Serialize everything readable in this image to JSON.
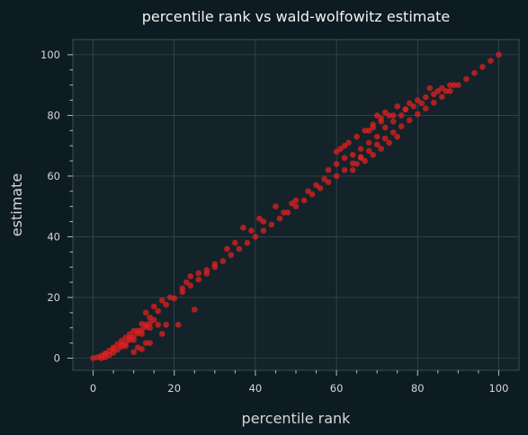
{
  "chart_data": {
    "type": "scatter",
    "title": "percentile rank vs wald-wolfowitz estimate",
    "xlabel": "percentile rank",
    "ylabel": "estimate",
    "xlim": [
      -5,
      105
    ],
    "ylim": [
      -4,
      105
    ],
    "xticks": [
      0,
      20,
      40,
      60,
      80,
      100
    ],
    "yticks": [
      0,
      20,
      40,
      60,
      80,
      100
    ],
    "grid": true,
    "point_color": "#e02020",
    "background": "#0d1b22",
    "plot_background": "#14232a",
    "series": [
      {
        "points": [
          [
            0,
            0
          ],
          [
            1,
            0.3
          ],
          [
            2,
            0.8
          ],
          [
            3,
            1.5
          ],
          [
            4,
            2.5
          ],
          [
            5,
            3.5
          ],
          [
            6,
            4.6
          ],
          [
            7,
            5.7
          ],
          [
            8,
            6.8
          ],
          [
            9,
            7.9
          ],
          [
            10,
            9
          ],
          [
            12,
            11.3
          ],
          [
            14,
            13.4
          ],
          [
            16,
            15.5
          ],
          [
            18,
            17.6
          ],
          [
            20,
            19.7
          ],
          [
            22,
            21.8
          ],
          [
            24,
            23.9
          ],
          [
            26,
            25.9
          ],
          [
            28,
            27.9
          ],
          [
            30,
            30
          ],
          [
            32,
            32
          ],
          [
            34,
            34
          ],
          [
            36,
            36
          ],
          [
            38,
            38
          ],
          [
            40,
            40
          ],
          [
            42,
            42
          ],
          [
            44,
            44
          ],
          [
            46,
            46
          ],
          [
            48,
            48
          ],
          [
            50,
            50
          ],
          [
            52,
            52
          ],
          [
            54,
            54
          ],
          [
            56,
            56
          ],
          [
            58,
            58
          ],
          [
            60,
            60
          ],
          [
            62,
            62
          ],
          [
            64,
            64.2
          ],
          [
            66,
            66.3
          ],
          [
            68,
            68.3
          ],
          [
            70,
            70.4
          ],
          [
            72,
            72.4
          ],
          [
            74,
            74.4
          ],
          [
            76,
            76.4
          ],
          [
            78,
            78.4
          ],
          [
            80,
            80.4
          ],
          [
            82,
            82.3
          ],
          [
            84,
            84.2
          ],
          [
            86,
            86.1
          ],
          [
            88,
            88
          ],
          [
            90,
            90
          ],
          [
            92,
            92
          ],
          [
            94,
            94
          ],
          [
            96,
            96
          ],
          [
            98,
            98
          ],
          [
            100,
            100
          ],
          [
            2,
            0
          ],
          [
            3,
            0.3
          ],
          [
            4,
            1
          ],
          [
            5,
            1.8
          ],
          [
            6,
            2.8
          ],
          [
            7,
            3.8
          ],
          [
            8,
            4.9
          ],
          [
            9,
            6
          ],
          [
            10,
            7
          ],
          [
            11,
            8.2
          ],
          [
            12,
            9.3
          ],
          [
            13,
            10.3
          ],
          [
            14,
            11.5
          ],
          [
            15,
            12.6
          ],
          [
            3,
            1.5
          ],
          [
            5,
            3
          ],
          [
            7,
            4.5
          ],
          [
            9,
            6.5
          ],
          [
            11,
            9
          ],
          [
            13,
            11
          ],
          [
            8,
            4
          ],
          [
            10,
            6
          ],
          [
            12,
            8
          ],
          [
            14,
            10
          ],
          [
            16,
            11
          ],
          [
            17,
            8
          ],
          [
            18,
            11
          ],
          [
            21,
            11
          ],
          [
            25,
            16
          ],
          [
            10,
            2
          ],
          [
            12,
            3
          ],
          [
            14,
            5
          ],
          [
            13,
            5
          ],
          [
            11,
            3.5
          ],
          [
            58,
            62
          ],
          [
            60,
            64
          ],
          [
            62,
            66
          ],
          [
            64,
            67
          ],
          [
            66,
            69
          ],
          [
            68,
            71
          ],
          [
            70,
            73
          ],
          [
            72,
            76
          ],
          [
            74,
            78
          ],
          [
            60,
            68
          ],
          [
            61,
            69
          ],
          [
            62,
            70
          ],
          [
            63,
            71
          ],
          [
            65,
            73
          ],
          [
            67,
            75
          ],
          [
            69,
            77
          ],
          [
            71,
            79
          ],
          [
            70,
            80
          ],
          [
            72,
            81
          ],
          [
            75,
            83
          ],
          [
            78,
            84
          ],
          [
            80,
            85
          ],
          [
            83,
            89
          ],
          [
            86,
            89
          ],
          [
            88,
            90
          ],
          [
            76,
            80
          ],
          [
            77,
            82
          ],
          [
            79,
            83
          ],
          [
            81,
            84
          ],
          [
            84,
            87
          ],
          [
            87,
            88
          ],
          [
            89,
            90
          ],
          [
            45,
            50
          ],
          [
            50,
            52
          ],
          [
            53,
            55
          ],
          [
            55,
            57
          ],
          [
            57,
            59
          ],
          [
            39,
            42
          ],
          [
            42,
            45
          ],
          [
            35,
            38
          ],
          [
            33,
            36
          ],
          [
            24,
            27
          ],
          [
            26,
            28
          ],
          [
            28,
            29
          ],
          [
            30,
            31
          ],
          [
            37,
            43
          ],
          [
            41,
            46
          ],
          [
            47,
            48
          ],
          [
            49,
            51
          ],
          [
            22,
            23
          ],
          [
            23,
            25
          ],
          [
            19,
            20
          ],
          [
            17,
            19
          ],
          [
            15,
            17
          ],
          [
            13,
            15
          ],
          [
            66,
            66
          ],
          [
            67,
            65
          ],
          [
            69,
            67
          ],
          [
            71,
            69
          ],
          [
            73,
            71
          ],
          [
            75,
            73
          ],
          [
            64,
            62
          ],
          [
            65,
            64
          ],
          [
            68,
            75
          ],
          [
            69,
            76
          ],
          [
            71,
            78
          ],
          [
            73,
            80
          ],
          [
            74,
            80
          ],
          [
            77,
            82
          ],
          [
            82,
            86
          ],
          [
            85,
            88
          ]
        ]
      }
    ]
  }
}
